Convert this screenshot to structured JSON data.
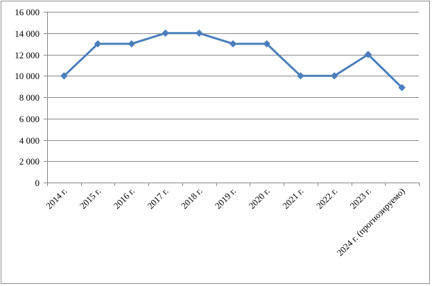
{
  "chart_data": {
    "type": "line",
    "categories": [
      "2014 г.",
      "2015 г.",
      "2016 г.",
      "2017 г.",
      "2018 г.",
      "2019 г.",
      "2020 г.",
      "2021 г.",
      "2022 г.",
      "2023 г.",
      "2024 г. (прогнозируемо)"
    ],
    "values": [
      10000,
      13000,
      13000,
      14000,
      14000,
      13000,
      13000,
      10000,
      10000,
      12000,
      8900
    ],
    "y_ticks": [
      0,
      2000,
      4000,
      6000,
      8000,
      10000,
      12000,
      14000,
      16000
    ],
    "y_tick_labels": [
      "0",
      "2 000",
      "4 000",
      "6 000",
      "8 000",
      "10 000",
      "12 000",
      "14 000",
      "16 000"
    ],
    "ylim": [
      0,
      16000
    ],
    "grid": true,
    "legend": "none",
    "line_color": "#4a7ebb",
    "grid_color": "#878787"
  }
}
